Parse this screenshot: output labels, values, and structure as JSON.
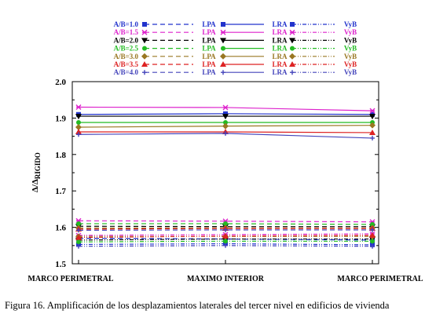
{
  "caption": "Figura 16. Amplificación de los desplazamientos laterales del tercer nivel en edificios de vivienda",
  "chart_data": {
    "type": "line",
    "title": "",
    "xlabel": "",
    "ylabel": "Δ/Δ",
    "ylabel_sub": "RIGIDO",
    "categories": [
      "MARCO PERIMETRAL",
      "MAXIMO INTERIOR",
      "MARCO PERIMETRAL"
    ],
    "ylim": [
      1.5,
      2.0
    ],
    "yticks": [
      "1.5",
      "1.6",
      "1.7",
      "1.8",
      "1.9",
      "2.0"
    ],
    "grid": false,
    "legend_position": "top",
    "methods": [
      "LPA",
      "LRA",
      "VyB"
    ],
    "ratios": [
      {
        "label": "A/B=1.0",
        "color": "#2233cc",
        "LPA": [
          1.57,
          1.568,
          1.565
        ],
        "LRA": [
          1.91,
          1.912,
          1.91
        ],
        "VyB": [
          1.553,
          1.555,
          1.552
        ]
      },
      {
        "label": "A/B=1.5",
        "color": "#dd22cc",
        "LPA": [
          1.618,
          1.617,
          1.615
        ],
        "LRA": [
          1.93,
          1.929,
          1.92
        ],
        "VyB": [
          1.578,
          1.58,
          1.582
        ]
      },
      {
        "label": "A/B=2.0",
        "color": "#000000",
        "LPA": [
          1.603,
          1.602,
          1.602
        ],
        "LRA": [
          1.905,
          1.905,
          1.905
        ],
        "VyB": [
          1.565,
          1.568,
          1.568
        ]
      },
      {
        "label": "A/B=2.5",
        "color": "#22bb22",
        "LPA": [
          1.61,
          1.61,
          1.608
        ],
        "LRA": [
          1.888,
          1.888,
          1.888
        ],
        "VyB": [
          1.56,
          1.562,
          1.562
        ]
      },
      {
        "label": "A/B=3.0",
        "color": "#997722",
        "LPA": [
          1.598,
          1.598,
          1.598
        ],
        "LRA": [
          1.875,
          1.878,
          1.88
        ],
        "VyB": [
          1.575,
          1.575,
          1.575
        ]
      },
      {
        "label": "A/B=3.5",
        "color": "#dd2222",
        "LPA": [
          1.595,
          1.597,
          1.597
        ],
        "LRA": [
          1.862,
          1.862,
          1.86
        ],
        "VyB": [
          1.572,
          1.576,
          1.578
        ]
      },
      {
        "label": "A/B=4.0",
        "color": "#4444bb",
        "LPA": [
          1.592,
          1.593,
          1.593
        ],
        "LRA": [
          1.855,
          1.858,
          1.845
        ],
        "VyB": [
          1.548,
          1.55,
          1.548
        ]
      }
    ]
  }
}
